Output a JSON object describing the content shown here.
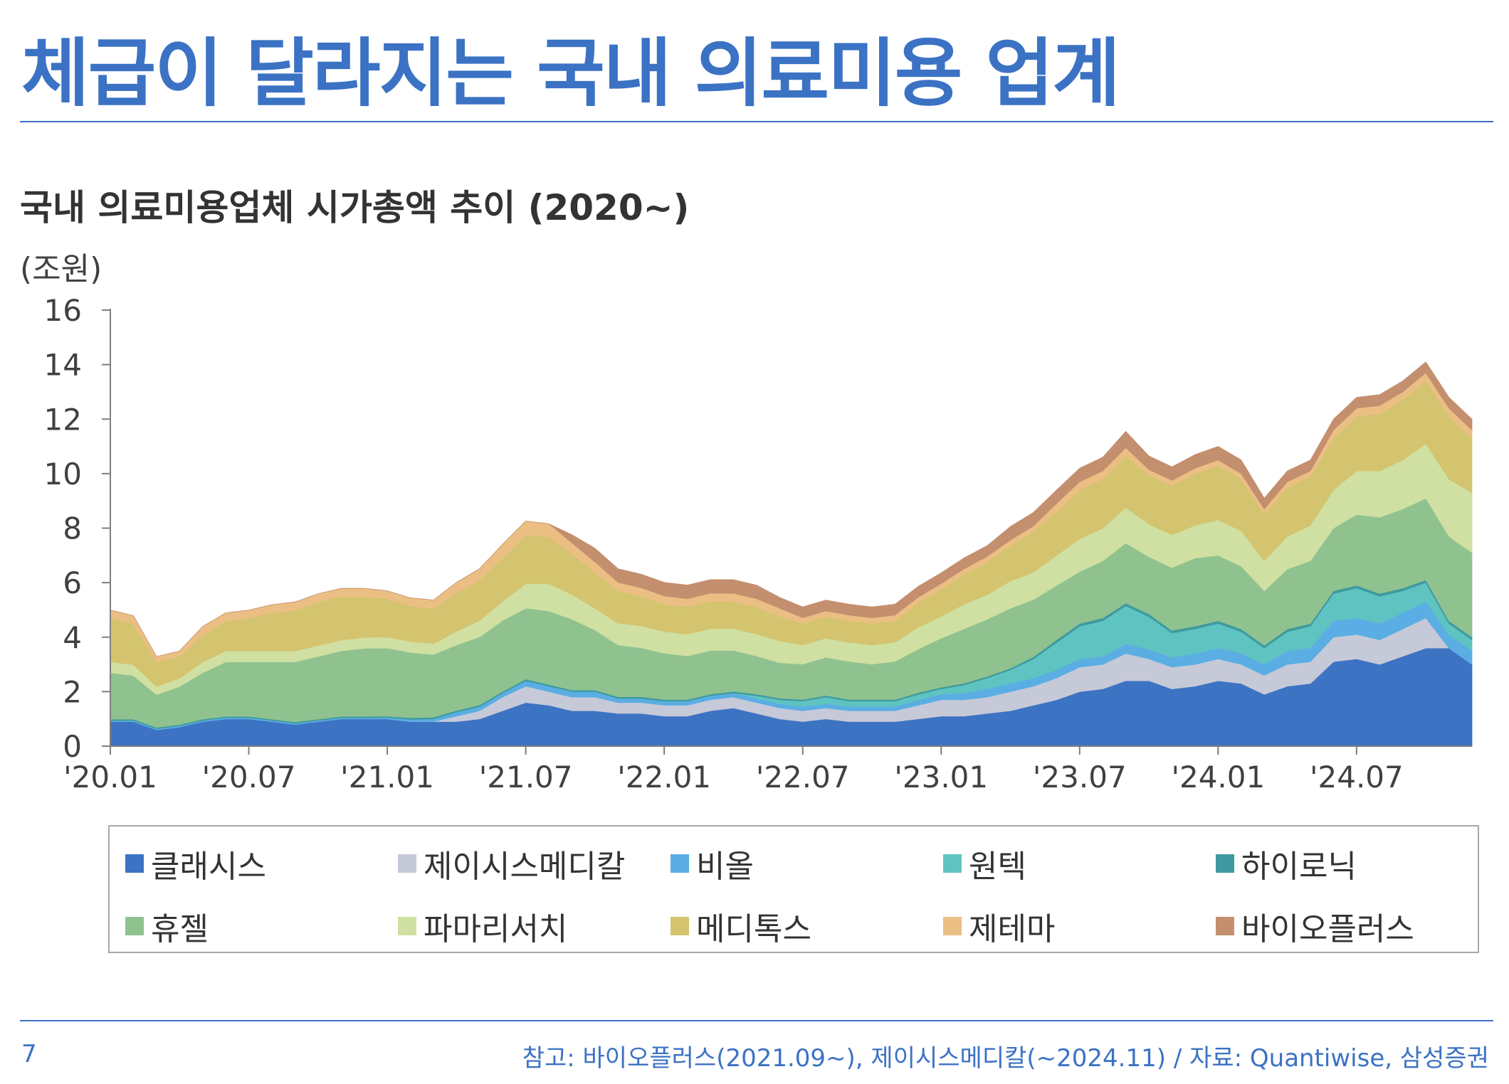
{
  "page_title": "체급이 달라지는 국내 의료미용 업계",
  "chart_title": "국내 의료미용업체 시가총액 추이 (2020~)",
  "unit_label": "(조원)",
  "page_number": "7",
  "source_note": "참고: 바이오플러스(2021.09~), 제이시스메디칼(~2024.11) / 자료: Quantiwise, 삼성증권",
  "chart_data": {
    "type": "area",
    "stacked": true,
    "title": "국내 의료미용업체 시가총액 추이 (2020~)",
    "ylabel": "(조원)",
    "xlabel": "",
    "ylim": [
      0,
      16
    ],
    "yticks": [
      "0",
      "2",
      "4",
      "6",
      "8",
      "10",
      "12",
      "14",
      "16"
    ],
    "x_tick_labels": [
      "'20.01",
      "'20.07",
      "'21.01",
      "'21.07",
      "'22.01",
      "'22.07",
      "'23.01",
      "'23.07",
      "'24.01",
      "'24.07"
    ],
    "x": [
      "20.01",
      "20.02",
      "20.03",
      "20.04",
      "20.05",
      "20.06",
      "20.07",
      "20.08",
      "20.09",
      "20.10",
      "20.11",
      "20.12",
      "21.01",
      "21.02",
      "21.03",
      "21.04",
      "21.05",
      "21.06",
      "21.07",
      "21.08",
      "21.09",
      "21.10",
      "21.11",
      "21.12",
      "22.01",
      "22.02",
      "22.03",
      "22.04",
      "22.05",
      "22.06",
      "22.07",
      "22.08",
      "22.09",
      "22.10",
      "22.11",
      "22.12",
      "23.01",
      "23.02",
      "23.03",
      "23.04",
      "23.05",
      "23.06",
      "23.07",
      "23.08",
      "23.09",
      "23.10",
      "23.11",
      "23.12",
      "24.01",
      "24.02",
      "24.03",
      "24.04",
      "24.05",
      "24.06",
      "24.07",
      "24.08",
      "24.09",
      "24.10",
      "24.11",
      "24.12"
    ],
    "legend_position": "bottom",
    "series": [
      {
        "name": "클래시스",
        "color": "#3d73c3",
        "values": [
          0.9,
          0.9,
          0.6,
          0.7,
          0.9,
          1.0,
          1.0,
          0.9,
          0.8,
          0.9,
          1.0,
          1.0,
          1.0,
          0.9,
          0.9,
          0.9,
          1.0,
          1.3,
          1.6,
          1.5,
          1.3,
          1.3,
          1.2,
          1.2,
          1.1,
          1.1,
          1.3,
          1.4,
          1.2,
          1.0,
          0.9,
          1.0,
          0.9,
          0.9,
          0.9,
          1.0,
          1.1,
          1.1,
          1.2,
          1.3,
          1.5,
          1.7,
          2.0,
          2.1,
          2.4,
          2.4,
          2.1,
          2.2,
          2.4,
          2.3,
          1.9,
          2.2,
          2.3,
          3.1,
          3.2,
          3.0,
          3.3,
          3.6,
          3.6,
          3.0
        ]
      },
      {
        "name": "제이시스메디칼",
        "color": "#c6c9d8",
        "values": [
          0,
          0,
          0,
          0,
          0,
          0,
          0,
          0,
          0,
          0,
          0,
          0,
          0,
          0,
          0,
          0.2,
          0.3,
          0.5,
          0.6,
          0.5,
          0.5,
          0.5,
          0.4,
          0.4,
          0.4,
          0.4,
          0.4,
          0.4,
          0.4,
          0.4,
          0.4,
          0.4,
          0.4,
          0.4,
          0.4,
          0.5,
          0.6,
          0.6,
          0.6,
          0.7,
          0.7,
          0.8,
          0.9,
          0.9,
          1.0,
          0.8,
          0.8,
          0.8,
          0.8,
          0.7,
          0.7,
          0.8,
          0.8,
          0.9,
          0.9,
          0.9,
          1.0,
          1.1,
          0,
          0
        ]
      },
      {
        "name": "비올",
        "color": "#5aaee3",
        "values": [
          0.04,
          0.04,
          0.04,
          0.04,
          0.04,
          0.04,
          0.04,
          0.04,
          0.04,
          0.04,
          0.04,
          0.04,
          0.05,
          0.08,
          0.1,
          0.15,
          0.15,
          0.15,
          0.2,
          0.2,
          0.2,
          0.2,
          0.15,
          0.15,
          0.15,
          0.15,
          0.15,
          0.15,
          0.15,
          0.15,
          0.15,
          0.15,
          0.15,
          0.15,
          0.15,
          0.2,
          0.2,
          0.25,
          0.3,
          0.3,
          0.3,
          0.3,
          0.3,
          0.3,
          0.35,
          0.35,
          0.35,
          0.4,
          0.4,
          0.4,
          0.4,
          0.5,
          0.5,
          0.6,
          0.6,
          0.6,
          0.6,
          0.6,
          0.5,
          0.5
        ]
      },
      {
        "name": "원텍",
        "color": "#5fc3c2",
        "values": [
          0,
          0,
          0,
          0,
          0,
          0,
          0,
          0,
          0,
          0,
          0,
          0,
          0,
          0,
          0,
          0,
          0,
          0,
          0,
          0,
          0,
          0,
          0,
          0,
          0,
          0,
          0,
          0,
          0.1,
          0.15,
          0.2,
          0.25,
          0.2,
          0.2,
          0.2,
          0.2,
          0.2,
          0.3,
          0.4,
          0.5,
          0.7,
          1.0,
          1.2,
          1.3,
          1.4,
          1.2,
          0.9,
          0.9,
          0.9,
          0.8,
          0.6,
          0.7,
          0.8,
          1.0,
          1.1,
          1.0,
          0.8,
          0.7,
          0.4,
          0.4
        ]
      },
      {
        "name": "하이로닉",
        "color": "#3e9aa0",
        "values": [
          0.05,
          0.05,
          0.05,
          0.05,
          0.05,
          0.05,
          0.05,
          0.05,
          0.05,
          0.05,
          0.05,
          0.05,
          0.05,
          0.06,
          0.06,
          0.06,
          0.06,
          0.06,
          0.06,
          0.06,
          0.06,
          0.06,
          0.06,
          0.06,
          0.06,
          0.06,
          0.06,
          0.06,
          0.06,
          0.06,
          0.06,
          0.06,
          0.06,
          0.06,
          0.06,
          0.06,
          0.06,
          0.06,
          0.06,
          0.06,
          0.08,
          0.1,
          0.1,
          0.1,
          0.1,
          0.1,
          0.1,
          0.1,
          0.1,
          0.1,
          0.1,
          0.1,
          0.1,
          0.1,
          0.1,
          0.1,
          0.1,
          0.1,
          0.1,
          0.1
        ]
      },
      {
        "name": "휴젤",
        "color": "#8fc28f",
        "values": [
          1.7,
          1.6,
          1.2,
          1.4,
          1.7,
          2.0,
          2.0,
          2.1,
          2.2,
          2.3,
          2.4,
          2.5,
          2.5,
          2.4,
          2.3,
          2.4,
          2.5,
          2.6,
          2.6,
          2.7,
          2.6,
          2.2,
          1.9,
          1.8,
          1.7,
          1.6,
          1.6,
          1.5,
          1.4,
          1.3,
          1.3,
          1.4,
          1.4,
          1.3,
          1.4,
          1.6,
          1.8,
          2.0,
          2.1,
          2.2,
          2.1,
          2.0,
          1.9,
          2.1,
          2.2,
          2.1,
          2.3,
          2.5,
          2.4,
          2.3,
          2.0,
          2.2,
          2.3,
          2.3,
          2.6,
          2.8,
          2.9,
          3.0,
          3.1,
          3.1
        ]
      },
      {
        "name": "파마리서치",
        "color": "#cfe0a2",
        "values": [
          0.4,
          0.4,
          0.3,
          0.3,
          0.4,
          0.4,
          0.4,
          0.4,
          0.4,
          0.4,
          0.4,
          0.4,
          0.4,
          0.4,
          0.4,
          0.5,
          0.6,
          0.7,
          0.9,
          1.0,
          0.9,
          0.8,
          0.8,
          0.8,
          0.8,
          0.8,
          0.8,
          0.8,
          0.8,
          0.8,
          0.7,
          0.7,
          0.7,
          0.7,
          0.7,
          0.8,
          0.8,
          0.9,
          0.9,
          1.0,
          1.0,
          1.1,
          1.2,
          1.2,
          1.3,
          1.2,
          1.2,
          1.2,
          1.3,
          1.3,
          1.1,
          1.2,
          1.3,
          1.4,
          1.6,
          1.7,
          1.8,
          2.0,
          2.1,
          2.2
        ]
      },
      {
        "name": "메디톡스",
        "color": "#d4c46f",
        "values": [
          1.6,
          1.5,
          0.9,
          0.8,
          1.0,
          1.1,
          1.2,
          1.4,
          1.5,
          1.6,
          1.6,
          1.5,
          1.4,
          1.3,
          1.3,
          1.4,
          1.5,
          1.6,
          1.8,
          1.7,
          1.5,
          1.3,
          1.2,
          1.1,
          1.0,
          1.0,
          1.0,
          1.0,
          1.0,
          0.9,
          0.8,
          0.8,
          0.8,
          0.8,
          0.8,
          0.9,
          1.0,
          1.1,
          1.2,
          1.3,
          1.5,
          1.6,
          1.8,
          1.8,
          1.9,
          1.8,
          1.8,
          1.9,
          2.0,
          1.9,
          1.7,
          1.8,
          1.8,
          1.9,
          2.0,
          2.1,
          2.2,
          2.3,
          2.3,
          2.0
        ]
      },
      {
        "name": "제테마",
        "color": "#ebbf84",
        "values": [
          0.3,
          0.3,
          0.2,
          0.2,
          0.3,
          0.3,
          0.3,
          0.3,
          0.3,
          0.3,
          0.3,
          0.3,
          0.3,
          0.3,
          0.3,
          0.4,
          0.4,
          0.5,
          0.5,
          0.5,
          0.4,
          0.4,
          0.3,
          0.3,
          0.3,
          0.3,
          0.3,
          0.3,
          0.3,
          0.3,
          0.2,
          0.2,
          0.2,
          0.2,
          0.2,
          0.2,
          0.2,
          0.2,
          0.2,
          0.2,
          0.2,
          0.3,
          0.3,
          0.3,
          0.3,
          0.2,
          0.2,
          0.2,
          0.2,
          0.2,
          0.2,
          0.2,
          0.2,
          0.3,
          0.3,
          0.3,
          0.3,
          0.3,
          0.3,
          0.3
        ]
      },
      {
        "name": "바이오플러스",
        "color": "#c48f6e",
        "values": [
          0,
          0,
          0,
          0,
          0,
          0,
          0,
          0,
          0,
          0,
          0,
          0,
          0,
          0,
          0,
          0,
          0,
          0,
          0,
          0,
          0.3,
          0.5,
          0.5,
          0.5,
          0.5,
          0.5,
          0.5,
          0.5,
          0.5,
          0.4,
          0.4,
          0.4,
          0.4,
          0.4,
          0.4,
          0.4,
          0.4,
          0.4,
          0.4,
          0.5,
          0.5,
          0.5,
          0.5,
          0.5,
          0.6,
          0.5,
          0.5,
          0.5,
          0.5,
          0.5,
          0.4,
          0.4,
          0.4,
          0.4,
          0.4,
          0.4,
          0.4,
          0.4,
          0.4,
          0.4
        ]
      }
    ]
  }
}
